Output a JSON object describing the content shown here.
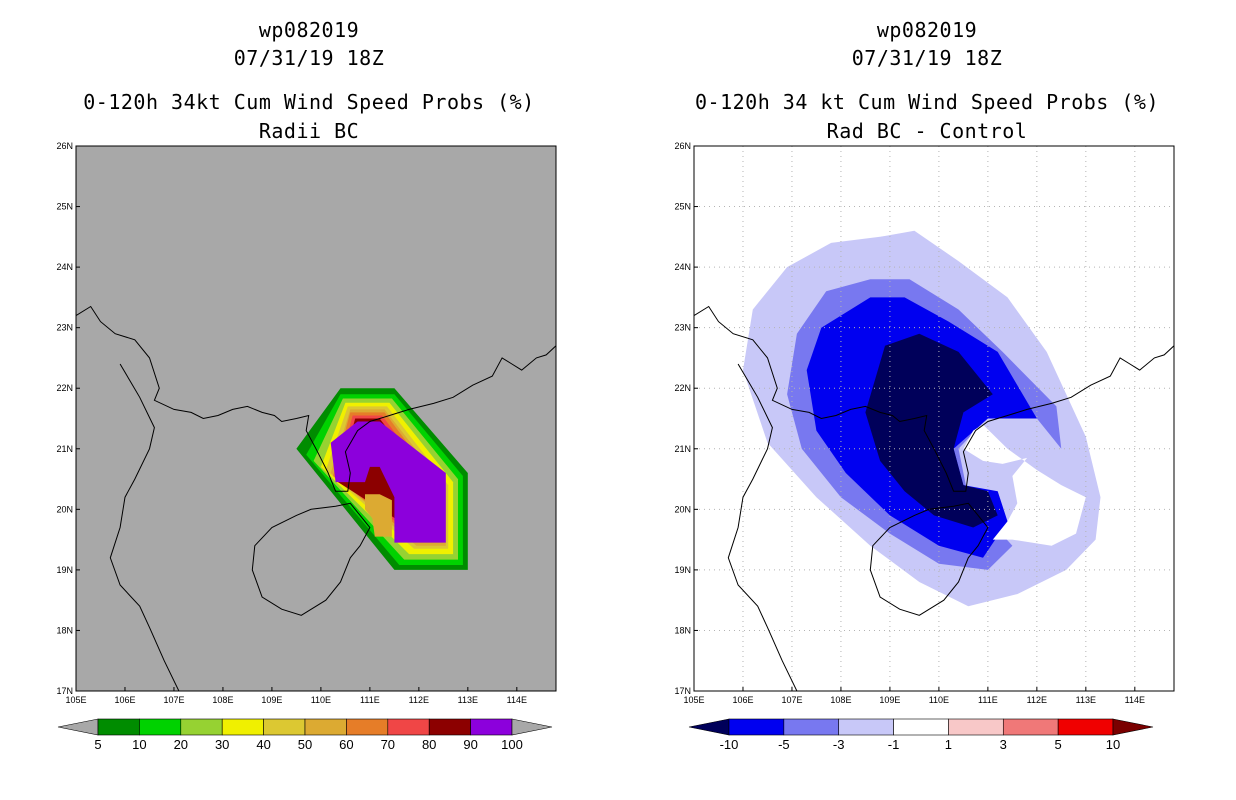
{
  "chart_data": [
    {
      "type": "heatmap",
      "id": "left",
      "title_lines": [
        "wp082019",
        "07/31/19 18Z",
        "0-120h 34kt Cum Wind Speed Probs (%)",
        "Radii BC"
      ],
      "x_ticks": [
        "105E",
        "106E",
        "107E",
        "108E",
        "109E",
        "110E",
        "111E",
        "112E",
        "113E",
        "114E"
      ],
      "y_ticks": [
        "17N",
        "18N",
        "19N",
        "20N",
        "21N",
        "22N",
        "23N",
        "24N",
        "25N",
        "26N"
      ],
      "xlim": [
        105,
        114.8
      ],
      "ylim": [
        17,
        26
      ],
      "background": "#a8a8a8",
      "grid": false,
      "colorbar": {
        "labels": [
          "5",
          "10",
          "20",
          "30",
          "40",
          "50",
          "60",
          "70",
          "80",
          "90",
          "100"
        ],
        "colors": [
          "#008c00",
          "#00d200",
          "#96d232",
          "#f0f000",
          "#dcc832",
          "#dcaa32",
          "#e67d28",
          "#f04646",
          "#8c0000",
          "#8c00dc"
        ],
        "under": "#a8a8a8",
        "over": "#a8a8a8"
      },
      "contours": [
        {
          "level": 5,
          "color": "#008c00",
          "polygon": [
            [
              110.4,
              22.0
            ],
            [
              111.5,
              22.0
            ],
            [
              113.0,
              20.6
            ],
            [
              113.0,
              19.0
            ],
            [
              111.5,
              19.0
            ],
            [
              109.5,
              21.0
            ]
          ]
        },
        {
          "level": 10,
          "color": "#00d200",
          "polygon": [
            [
              110.4,
              21.9
            ],
            [
              111.5,
              21.9
            ],
            [
              112.9,
              20.55
            ],
            [
              112.9,
              19.08
            ],
            [
              111.6,
              19.08
            ],
            [
              109.7,
              20.9
            ]
          ]
        },
        {
          "level": 20,
          "color": "#96d232",
          "polygon": [
            [
              110.45,
              21.83
            ],
            [
              111.45,
              21.83
            ],
            [
              112.8,
              20.5
            ],
            [
              112.8,
              19.17
            ],
            [
              111.7,
              19.17
            ],
            [
              109.85,
              20.8
            ]
          ]
        },
        {
          "level": 30,
          "color": "#f0f000",
          "polygon": [
            [
              110.5,
              21.76
            ],
            [
              111.4,
              21.76
            ],
            [
              112.7,
              20.45
            ],
            [
              112.7,
              19.26
            ],
            [
              111.8,
              19.26
            ],
            [
              110.0,
              20.7
            ]
          ]
        },
        {
          "level": 40,
          "color": "#dcc832",
          "polygon": [
            [
              110.55,
              21.7
            ],
            [
              111.35,
              21.7
            ],
            [
              112.6,
              20.4
            ],
            [
              112.6,
              19.35
            ],
            [
              111.9,
              19.35
            ],
            [
              110.1,
              20.65
            ]
          ]
        },
        {
          "level": 50,
          "color": "#dcaa32",
          "polygon": [
            [
              110.6,
              21.65
            ],
            [
              111.3,
              21.65
            ],
            [
              112.55,
              20.35
            ],
            [
              112.55,
              19.4
            ],
            [
              111.95,
              19.4
            ],
            [
              110.2,
              20.6
            ]
          ]
        },
        {
          "level": 60,
          "color": "#e67d28",
          "polygon": [
            [
              110.6,
              21.6
            ],
            [
              111.3,
              21.6
            ],
            [
              112.5,
              20.3
            ],
            [
              112.5,
              19.45
            ],
            [
              112.0,
              19.45
            ],
            [
              110.25,
              20.55
            ]
          ]
        },
        {
          "level": 70,
          "color": "#f04646",
          "polygon": [
            [
              110.65,
              21.55
            ],
            [
              111.25,
              21.55
            ],
            [
              112.45,
              20.25
            ],
            [
              112.45,
              19.5
            ],
            [
              112.05,
              19.5
            ],
            [
              110.3,
              20.5
            ]
          ]
        },
        {
          "level": 80,
          "color": "#8c0000",
          "polygon": [
            [
              110.7,
              21.5
            ],
            [
              111.2,
              21.5
            ],
            [
              112.4,
              20.2
            ],
            [
              112.4,
              19.55
            ],
            [
              112.1,
              19.55
            ],
            [
              110.35,
              20.45
            ]
          ]
        },
        {
          "level": 100,
          "color": "#8c00dc",
          "polygon": [
            [
              110.75,
              21.45
            ],
            [
              111.2,
              21.45
            ],
            [
              112.55,
              20.6
            ],
            [
              112.55,
              19.45
            ],
            [
              111.5,
              19.45
            ],
            [
              111.5,
              20.2
            ],
            [
              111.2,
              20.7
            ],
            [
              111.0,
              20.7
            ],
            [
              110.9,
              20.45
            ],
            [
              110.3,
              20.45
            ],
            [
              110.2,
              21.1
            ]
          ]
        },
        {
          "level": 60,
          "color": "#dcaa32",
          "polygon": [
            [
              111.45,
              20.15
            ],
            [
              111.45,
              19.55
            ],
            [
              111.1,
              19.55
            ],
            [
              111.05,
              19.85
            ],
            [
              110.9,
              20.0
            ],
            [
              110.9,
              20.25
            ],
            [
              111.2,
              20.25
            ]
          ]
        }
      ]
    },
    {
      "type": "heatmap",
      "id": "right",
      "title_lines": [
        "wp082019",
        "07/31/19 18Z",
        "0-120h 34 kt Cum Wind Speed Probs (%)",
        "Rad BC - Control"
      ],
      "x_ticks": [
        "105E",
        "106E",
        "107E",
        "108E",
        "109E",
        "110E",
        "111E",
        "112E",
        "113E",
        "114E"
      ],
      "y_ticks": [
        "17N",
        "18N",
        "19N",
        "20N",
        "21N",
        "22N",
        "23N",
        "24N",
        "25N",
        "26N"
      ],
      "xlim": [
        105,
        114.8
      ],
      "ylim": [
        17,
        26
      ],
      "background": "#ffffff",
      "grid": true,
      "colorbar": {
        "labels": [
          "-10",
          "-5",
          "-3",
          "-1",
          "1",
          "3",
          "5",
          "10"
        ],
        "colors": [
          "#0000f0",
          "#7878f0",
          "#c8c8f8",
          "#ffffff",
          "#f8c8c8",
          "#f07878",
          "#f00000"
        ],
        "under": "#00005a",
        "over": "#7a0000"
      },
      "contours": [
        {
          "level": -1,
          "color": "#c8c8f8",
          "polygon": [
            [
              108.8,
              24.5
            ],
            [
              109.5,
              24.6
            ],
            [
              110.4,
              24.1
            ],
            [
              111.4,
              23.5
            ],
            [
              112.2,
              22.6
            ],
            [
              113.0,
              21.2
            ],
            [
              113.3,
              20.2
            ],
            [
              113.2,
              19.5
            ],
            [
              112.6,
              19.0
            ],
            [
              111.6,
              18.6
            ],
            [
              110.6,
              18.4
            ],
            [
              109.6,
              18.8
            ],
            [
              108.6,
              19.4
            ],
            [
              107.5,
              20.2
            ],
            [
              106.5,
              21.1
            ],
            [
              106.0,
              22.3
            ],
            [
              106.2,
              23.3
            ],
            [
              106.9,
              24.0
            ],
            [
              107.8,
              24.4
            ]
          ]
        },
        {
          "level": -3,
          "color": "#7878f0",
          "polygon": [
            [
              108.6,
              23.8
            ],
            [
              109.4,
              23.8
            ],
            [
              110.4,
              23.3
            ],
            [
              111.3,
              22.6
            ],
            [
              112.4,
              21.7
            ],
            [
              112.5,
              21.0
            ],
            [
              112.0,
              21.5
            ],
            [
              111.1,
              21.6
            ],
            [
              110.4,
              21.0
            ],
            [
              110.6,
              20.2
            ],
            [
              111.5,
              19.4
            ],
            [
              111.0,
              19.0
            ],
            [
              110.0,
              19.1
            ],
            [
              109.0,
              19.6
            ],
            [
              108.0,
              20.2
            ],
            [
              107.2,
              21.0
            ],
            [
              106.9,
              21.9
            ],
            [
              107.1,
              22.9
            ],
            [
              107.7,
              23.6
            ]
          ]
        },
        {
          "level": -5,
          "color": "#0000f0",
          "polygon": [
            [
              108.6,
              23.5
            ],
            [
              109.3,
              23.5
            ],
            [
              110.2,
              23.1
            ],
            [
              111.2,
              22.6
            ],
            [
              112.0,
              21.5
            ],
            [
              111.0,
              21.5
            ],
            [
              110.3,
              21.0
            ],
            [
              110.5,
              20.4
            ],
            [
              111.2,
              20.3
            ],
            [
              111.4,
              19.8
            ],
            [
              110.9,
              19.2
            ],
            [
              110.0,
              19.4
            ],
            [
              109.0,
              19.9
            ],
            [
              108.1,
              20.6
            ],
            [
              107.5,
              21.3
            ],
            [
              107.3,
              22.3
            ],
            [
              107.6,
              23.0
            ]
          ]
        },
        {
          "level": -10,
          "color": "#00005a",
          "polygon": [
            [
              108.9,
              22.7
            ],
            [
              109.6,
              22.9
            ],
            [
              110.4,
              22.6
            ],
            [
              111.1,
              21.9
            ],
            [
              110.5,
              21.6
            ],
            [
              110.3,
              21.0
            ],
            [
              110.5,
              20.4
            ],
            [
              111.0,
              20.3
            ],
            [
              111.2,
              19.9
            ],
            [
              110.7,
              19.7
            ],
            [
              109.9,
              19.9
            ],
            [
              109.3,
              20.3
            ],
            [
              108.8,
              20.8
            ],
            [
              108.5,
              21.6
            ]
          ]
        },
        {
          "level": 1,
          "color": "#ffffff",
          "polygon": [
            [
              110.9,
              21.4
            ],
            [
              111.4,
              21.0
            ],
            [
              112.0,
              20.65
            ],
            [
              112.5,
              20.4
            ],
            [
              113.0,
              20.2
            ],
            [
              112.8,
              19.6
            ],
            [
              112.3,
              19.4
            ],
            [
              111.5,
              19.5
            ],
            [
              111.1,
              19.5
            ],
            [
              111.4,
              19.8
            ],
            [
              111.6,
              20.1
            ],
            [
              111.5,
              20.55
            ],
            [
              111.8,
              20.85
            ],
            [
              111.3,
              20.75
            ],
            [
              110.9,
              20.8
            ],
            [
              110.5,
              21.0
            ],
            [
              110.7,
              21.3
            ]
          ]
        }
      ]
    }
  ],
  "map_outline": {
    "mainland": [
      [
        105.0,
        23.2
      ],
      [
        105.3,
        23.35
      ],
      [
        105.5,
        23.1
      ],
      [
        105.8,
        22.9
      ],
      [
        106.2,
        22.8
      ],
      [
        106.5,
        22.5
      ],
      [
        106.7,
        22.0
      ],
      [
        106.6,
        21.8
      ],
      [
        107.0,
        21.65
      ],
      [
        107.35,
        21.6
      ],
      [
        107.6,
        21.5
      ],
      [
        107.9,
        21.55
      ],
      [
        108.2,
        21.65
      ],
      [
        108.5,
        21.7
      ],
      [
        108.8,
        21.6
      ],
      [
        109.05,
        21.55
      ],
      [
        109.2,
        21.45
      ],
      [
        109.5,
        21.5
      ],
      [
        109.75,
        21.55
      ],
      [
        109.7,
        21.3
      ],
      [
        109.9,
        21.0
      ],
      [
        110.15,
        20.6
      ],
      [
        110.3,
        20.3
      ],
      [
        110.55,
        20.3
      ],
      [
        110.6,
        20.6
      ],
      [
        110.5,
        20.95
      ],
      [
        110.75,
        21.3
      ],
      [
        111.0,
        21.45
      ],
      [
        111.4,
        21.55
      ],
      [
        111.8,
        21.65
      ],
      [
        112.3,
        21.75
      ],
      [
        112.7,
        21.85
      ],
      [
        113.1,
        22.05
      ],
      [
        113.5,
        22.2
      ],
      [
        113.7,
        22.5
      ],
      [
        113.9,
        22.4
      ],
      [
        114.1,
        22.3
      ],
      [
        114.4,
        22.5
      ],
      [
        114.6,
        22.55
      ],
      [
        114.8,
        22.7
      ]
    ],
    "vietnam": [
      [
        105.9,
        22.4
      ],
      [
        106.3,
        21.85
      ],
      [
        106.6,
        21.35
      ],
      [
        106.5,
        21.0
      ],
      [
        106.2,
        20.5
      ],
      [
        106.0,
        20.2
      ],
      [
        105.9,
        19.7
      ],
      [
        105.7,
        19.2
      ],
      [
        105.9,
        18.75
      ],
      [
        106.3,
        18.4
      ],
      [
        106.5,
        18.05
      ],
      [
        106.8,
        17.5
      ],
      [
        107.1,
        17.0
      ]
    ],
    "hainan": [
      [
        109.8,
        20.0
      ],
      [
        110.3,
        20.05
      ],
      [
        110.6,
        20.1
      ],
      [
        111.0,
        19.7
      ],
      [
        110.8,
        19.4
      ],
      [
        110.6,
        19.2
      ],
      [
        110.4,
        18.8
      ],
      [
        110.1,
        18.5
      ],
      [
        109.6,
        18.25
      ],
      [
        109.2,
        18.35
      ],
      [
        108.8,
        18.55
      ],
      [
        108.6,
        19.0
      ],
      [
        108.65,
        19.4
      ],
      [
        109.0,
        19.7
      ],
      [
        109.5,
        19.9
      ]
    ]
  }
}
